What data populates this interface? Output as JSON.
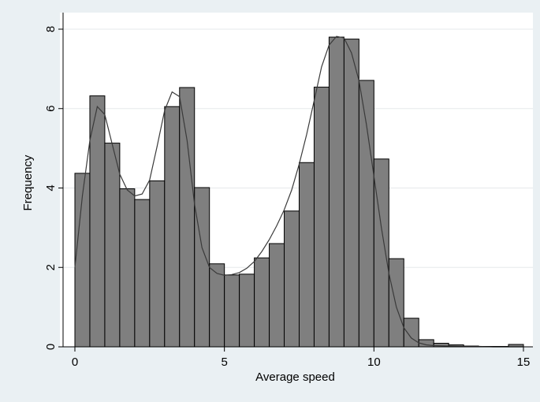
{
  "chart_data": {
    "type": "bar",
    "subtype": "histogram",
    "xlabel": "Average speed",
    "ylabel": "Frequency",
    "xlim": [
      -0.5,
      15.5
    ],
    "ylim": [
      0,
      8.35
    ],
    "xticks": [
      0,
      5,
      10,
      15
    ],
    "yticks": [
      0,
      2,
      4,
      6,
      8
    ],
    "grid": true,
    "bin_width": 0.5,
    "bins": [
      {
        "x0": 0.0,
        "x1": 0.5,
        "value": 4.37
      },
      {
        "x0": 0.5,
        "x1": 1.0,
        "value": 6.32
      },
      {
        "x0": 1.0,
        "x1": 1.5,
        "value": 5.13
      },
      {
        "x0": 1.5,
        "x1": 2.0,
        "value": 3.98
      },
      {
        "x0": 2.0,
        "x1": 2.5,
        "value": 3.71
      },
      {
        "x0": 2.5,
        "x1": 3.0,
        "value": 4.18
      },
      {
        "x0": 3.0,
        "x1": 3.5,
        "value": 6.05
      },
      {
        "x0": 3.5,
        "x1": 4.0,
        "value": 6.53
      },
      {
        "x0": 4.0,
        "x1": 4.5,
        "value": 4.01
      },
      {
        "x0": 4.5,
        "x1": 5.0,
        "value": 2.09
      },
      {
        "x0": 5.0,
        "x1": 5.5,
        "value": 1.81
      },
      {
        "x0": 5.5,
        "x1": 6.0,
        "value": 1.83
      },
      {
        "x0": 6.0,
        "x1": 6.5,
        "value": 2.24
      },
      {
        "x0": 6.5,
        "x1": 7.0,
        "value": 2.6
      },
      {
        "x0": 7.0,
        "x1": 7.5,
        "value": 3.42
      },
      {
        "x0": 7.5,
        "x1": 8.0,
        "value": 4.64
      },
      {
        "x0": 8.0,
        "x1": 8.5,
        "value": 6.54
      },
      {
        "x0": 8.5,
        "x1": 9.0,
        "value": 7.8
      },
      {
        "x0": 9.0,
        "x1": 9.5,
        "value": 7.75
      },
      {
        "x0": 9.5,
        "x1": 10.0,
        "value": 6.71
      },
      {
        "x0": 10.0,
        "x1": 10.5,
        "value": 4.73
      },
      {
        "x0": 10.5,
        "x1": 11.0,
        "value": 2.22
      },
      {
        "x0": 11.0,
        "x1": 11.5,
        "value": 0.72
      },
      {
        "x0": 11.5,
        "x1": 12.0,
        "value": 0.18
      },
      {
        "x0": 12.0,
        "x1": 12.5,
        "value": 0.09
      },
      {
        "x0": 12.5,
        "x1": 13.0,
        "value": 0.05
      },
      {
        "x0": 13.0,
        "x1": 13.5,
        "value": 0.02
      },
      {
        "x0": 13.5,
        "x1": 14.0,
        "value": 0.01
      },
      {
        "x0": 14.0,
        "x1": 14.5,
        "value": 0.01
      },
      {
        "x0": 14.5,
        "x1": 15.0,
        "value": 0.06
      }
    ],
    "density_curve": {
      "x": [
        0.0,
        0.25,
        0.5,
        0.75,
        1.0,
        1.25,
        1.5,
        1.75,
        2.0,
        2.25,
        2.5,
        2.75,
        3.0,
        3.25,
        3.5,
        3.75,
        4.0,
        4.25,
        4.5,
        4.75,
        5.0,
        5.25,
        5.5,
        5.75,
        6.0,
        6.25,
        6.5,
        6.75,
        7.0,
        7.25,
        7.5,
        7.75,
        8.0,
        8.25,
        8.5,
        8.75,
        9.0,
        9.25,
        9.5,
        9.75,
        10.0,
        10.25,
        10.5,
        10.75,
        11.0,
        11.25,
        11.5,
        11.75,
        12.0,
        12.5,
        13.0,
        13.5,
        14.0,
        14.5,
        15.0
      ],
      "y": [
        2.0,
        3.8,
        5.2,
        6.05,
        5.85,
        5.1,
        4.35,
        3.95,
        3.8,
        3.85,
        4.2,
        5.05,
        5.95,
        6.42,
        6.3,
        5.2,
        3.6,
        2.5,
        2.0,
        1.85,
        1.8,
        1.82,
        1.87,
        1.98,
        2.15,
        2.4,
        2.7,
        3.05,
        3.45,
        3.95,
        4.6,
        5.35,
        6.2,
        7.05,
        7.6,
        7.82,
        7.78,
        7.4,
        6.7,
        5.6,
        4.3,
        3.0,
        1.85,
        1.0,
        0.48,
        0.22,
        0.1,
        0.05,
        0.03,
        0.02,
        0.01,
        0.01,
        0.0,
        0.0,
        0.0
      ]
    },
    "colors": {
      "background": "#eaf0f3",
      "plot_area": "#ffffff",
      "bar_fill": "#7f7f7f",
      "bar_edge": "#000000",
      "curve": "#3a3a3a",
      "grid": "#e6e9eb"
    }
  }
}
